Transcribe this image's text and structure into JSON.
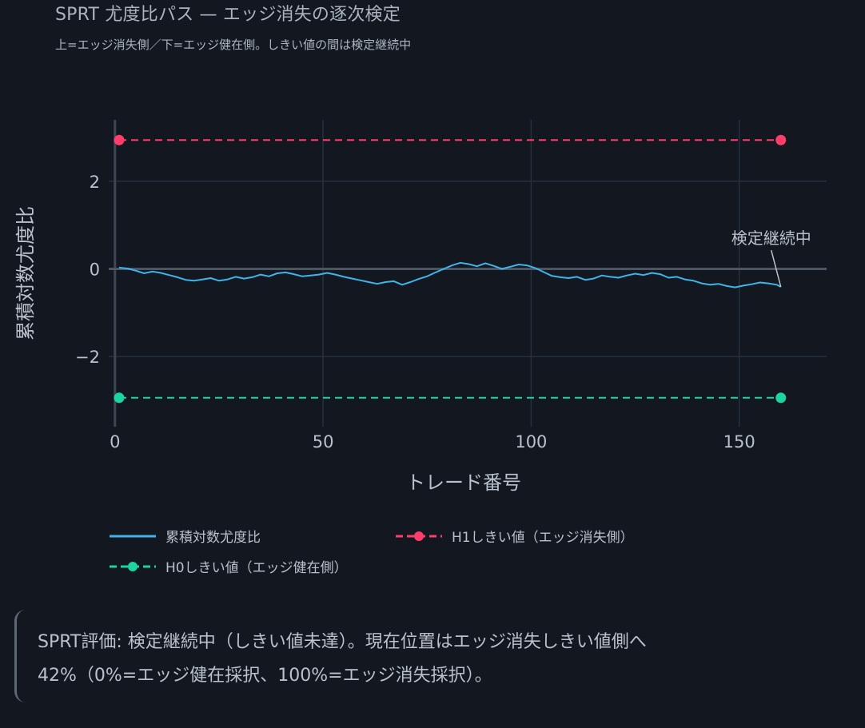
{
  "title": "SPRT 尤度比パス — エッジ消失の逐次検定",
  "subtitle": "上=エッジ消失側／下=エッジ健在側。しきい値の間は検定継続中",
  "chart_data": {
    "type": "line",
    "xlabel": "トレード番号",
    "ylabel": "累積対数尤度比",
    "xlim": [
      -1.5,
      171
    ],
    "ylim": [
      -3.6,
      3.4
    ],
    "xticks": [
      0,
      50,
      100,
      150
    ],
    "xtick_labels": [
      "0",
      "50",
      "100",
      "150"
    ],
    "yticks": [
      -2,
      0,
      2
    ],
    "ytick_labels": [
      "−2",
      "0",
      "2"
    ],
    "grid": true,
    "legend_placement": "bottom",
    "series": [
      {
        "name": "累積対数尤度比",
        "color": "#3fb4ea",
        "x": [
          1,
          3,
          5,
          7,
          9,
          11,
          13,
          15,
          17,
          19,
          21,
          23,
          25,
          27,
          29,
          31,
          33,
          35,
          37,
          39,
          41,
          43,
          45,
          47,
          49,
          51,
          53,
          55,
          57,
          59,
          61,
          63,
          65,
          67,
          69,
          71,
          73,
          75,
          77,
          79,
          81,
          83,
          85,
          87,
          89,
          91,
          93,
          95,
          97,
          99,
          101,
          103,
          105,
          107,
          109,
          111,
          113,
          115,
          117,
          119,
          121,
          123,
          125,
          127,
          129,
          131,
          133,
          135,
          137,
          139,
          141,
          143,
          145,
          147,
          149,
          151,
          153,
          155,
          157,
          159,
          160
        ],
        "y": [
          0.03,
          0.01,
          -0.04,
          -0.1,
          -0.06,
          -0.09,
          -0.14,
          -0.19,
          -0.25,
          -0.27,
          -0.24,
          -0.21,
          -0.27,
          -0.24,
          -0.18,
          -0.22,
          -0.19,
          -0.13,
          -0.17,
          -0.1,
          -0.08,
          -0.12,
          -0.17,
          -0.15,
          -0.13,
          -0.09,
          -0.13,
          -0.18,
          -0.22,
          -0.26,
          -0.3,
          -0.34,
          -0.3,
          -0.28,
          -0.36,
          -0.3,
          -0.23,
          -0.17,
          -0.08,
          0.0,
          0.08,
          0.14,
          0.11,
          0.06,
          0.13,
          0.07,
          0.0,
          0.05,
          0.1,
          0.08,
          0.02,
          -0.07,
          -0.16,
          -0.19,
          -0.21,
          -0.18,
          -0.25,
          -0.22,
          -0.15,
          -0.18,
          -0.2,
          -0.15,
          -0.11,
          -0.14,
          -0.09,
          -0.12,
          -0.2,
          -0.18,
          -0.24,
          -0.27,
          -0.33,
          -0.36,
          -0.34,
          -0.39,
          -0.42,
          -0.38,
          -0.35,
          -0.31,
          -0.33,
          -0.36,
          -0.41
        ]
      },
      {
        "name": "H1しきい値（エッジ消失側）",
        "color": "#ff3d6b",
        "dash": true,
        "x": [
          1,
          160
        ],
        "y": [
          2.94,
          2.94
        ]
      },
      {
        "name": "H0しきい値（エッジ健在側）",
        "color": "#1bd4a0",
        "dash": true,
        "x": [
          1,
          160
        ],
        "y": [
          -2.94,
          -2.94
        ]
      }
    ],
    "annotation": {
      "text": "検定継続中",
      "x": 160,
      "y": -0.41
    }
  },
  "legend": {
    "llr": "累積対数尤度比",
    "h1": "H1しきい値（エッジ消失側）",
    "h0": "H0しきい値（エッジ健在側）"
  },
  "note": {
    "line1": "SPRT評価: 検定継続中（しきい値未達）。現在位置はエッジ消失しきい値側へ",
    "line2": "42%（0%=エッジ健在採択、100%=エッジ消失採択）。"
  }
}
